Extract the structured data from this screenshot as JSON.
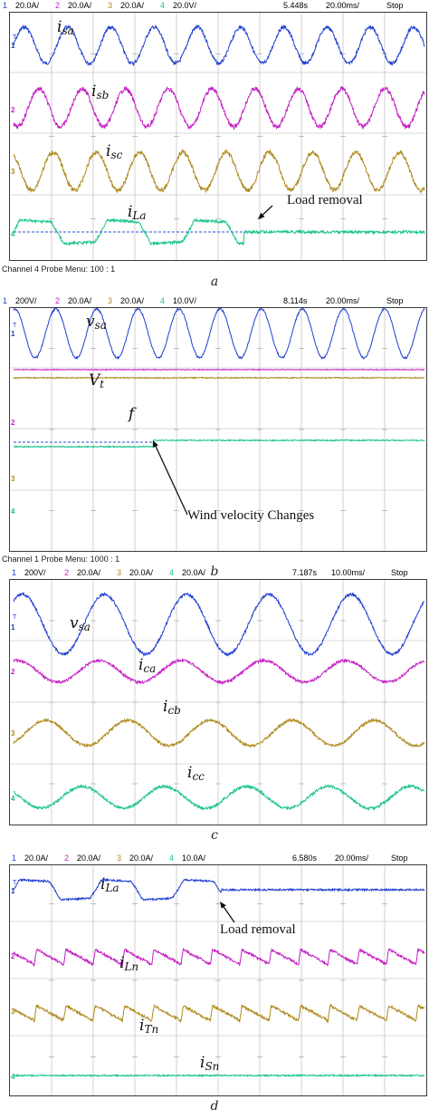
{
  "chart_data": [
    {
      "type": "line",
      "panel_label": "a",
      "header": {
        "channels": [
          {
            "index": "1",
            "scale": "20.0A/",
            "color": "#1f3fd0"
          },
          {
            "index": "2",
            "scale": "20.0A/",
            "color": "#c51fc5"
          },
          {
            "index": "3",
            "scale": "20.0A/",
            "color": "#b08a1e"
          },
          {
            "index": "4",
            "scale": "20.0V/",
            "color": "#18c48a"
          }
        ],
        "time": "5.448s",
        "timebase": "20.00ms/",
        "status": "Stop"
      },
      "probe_menu": "Channel 4 Probe Menu: 100 : 1",
      "x_divisions": 10,
      "series": [
        {
          "name_base": "i",
          "name_sub": "sa",
          "channel": "1",
          "waveform": "sine",
          "cycles": 9.5,
          "color": "#1f3fd0"
        },
        {
          "name_base": "i",
          "name_sub": "sb",
          "channel": "2",
          "waveform": "sine",
          "cycles": 9.5,
          "color": "#c51fc5"
        },
        {
          "name_base": "i",
          "name_sub": "sc",
          "channel": "3",
          "waveform": "sine",
          "cycles": 9.5,
          "color": "#b08a1e"
        },
        {
          "name_base": "i",
          "name_sub": "La",
          "channel": "4",
          "waveform": "quasi-square",
          "cycles": 4.7,
          "removed_at_fraction": 0.56,
          "color": "#18c48a"
        }
      ],
      "annotations": [
        {
          "text": "Load removal",
          "at_fraction": 0.56
        }
      ]
    },
    {
      "type": "line",
      "panel_label": "b",
      "header": {
        "channels": [
          {
            "index": "1",
            "scale": "200V/",
            "color": "#1f3fd0"
          },
          {
            "index": "2",
            "scale": "20.0A/",
            "color": "#c51fc5"
          },
          {
            "index": "3",
            "scale": "20.0A/",
            "color": "#b08a1e"
          },
          {
            "index": "4",
            "scale": "10.0V/",
            "color": "#18c48a"
          }
        ],
        "time": "8.114s",
        "timebase": "20.00ms/",
        "status": "Stop"
      },
      "probe_menu": "Channel 1 Probe Menu: 1000 : 1",
      "x_divisions": 10,
      "series": [
        {
          "name_base": "v",
          "name_sub": "sa",
          "channel": "1",
          "waveform": "sine",
          "cycles": 10,
          "color": "#1f3fd0"
        },
        {
          "name_base": "V",
          "name_sub": "t",
          "channel": "2",
          "waveform": "dc",
          "color": "#c51fc5"
        },
        {
          "name_base": "f",
          "name_sub": "",
          "channel": "3",
          "waveform": "dc",
          "color": "#b08a1e"
        },
        {
          "name_base": "",
          "name_sub": "",
          "channel": "4",
          "waveform": "step",
          "step_at_fraction": 0.34,
          "color": "#18c48a"
        }
      ],
      "annotations": [
        {
          "text": "Wind velocity Changes",
          "at_fraction": 0.34
        }
      ]
    },
    {
      "type": "line",
      "panel_label": "c",
      "header": {
        "channels": [
          {
            "index": "1",
            "scale": "200V/",
            "color": "#1f3fd0"
          },
          {
            "index": "2",
            "scale": "20.0A/",
            "color": "#c51fc5"
          },
          {
            "index": "3",
            "scale": "20.0A/",
            "color": "#b08a1e"
          },
          {
            "index": "4",
            "scale": "20.0A/",
            "color": "#18c48a"
          }
        ],
        "time": "7.187s",
        "timebase": "10.00ms/",
        "status": "Stop"
      },
      "probe_menu": "",
      "x_divisions": 10,
      "series": [
        {
          "name_base": "v",
          "name_sub": "sa",
          "channel": "1",
          "waveform": "sine",
          "cycles": 5,
          "color": "#1f3fd0"
        },
        {
          "name_base": "i",
          "name_sub": "ca",
          "channel": "2",
          "waveform": "sine",
          "cycles": 5,
          "color": "#c51fc5"
        },
        {
          "name_base": "i",
          "name_sub": "cb",
          "channel": "3",
          "waveform": "sine",
          "cycles": 5,
          "color": "#b08a1e"
        },
        {
          "name_base": "i",
          "name_sub": "cc",
          "channel": "4",
          "waveform": "sine",
          "cycles": 5,
          "color": "#18c48a"
        }
      ],
      "annotations": []
    },
    {
      "type": "line",
      "panel_label": "d",
      "header": {
        "channels": [
          {
            "index": "1",
            "scale": "20.0A/",
            "color": "#1f3fd0"
          },
          {
            "index": "2",
            "scale": "20.0A/",
            "color": "#c51fc5"
          },
          {
            "index": "3",
            "scale": "20.0A/",
            "color": "#b08a1e"
          },
          {
            "index": "4",
            "scale": "10.0A/",
            "color": "#18c48a"
          }
        ],
        "time": "6.580s",
        "timebase": "20.00ms/",
        "status": "Stop"
      },
      "probe_menu": "",
      "x_divisions": 10,
      "series": [
        {
          "name_base": "i",
          "name_sub": "La",
          "channel": "1",
          "waveform": "quasi-square",
          "cycles": 5,
          "removed_at_fraction": 0.505,
          "color": "#1f3fd0"
        },
        {
          "name_base": "i",
          "name_sub": "Ln",
          "channel": "2",
          "waveform": "sawtooth",
          "cycles": 14,
          "color": "#c51fc5"
        },
        {
          "name_base": "i",
          "name_sub": "Tn",
          "channel": "3",
          "waveform": "sawtooth",
          "cycles": 14,
          "color": "#b08a1e"
        },
        {
          "name_base": "i",
          "name_sub": "Sn",
          "channel": "4",
          "waveform": "dc",
          "color": "#18c48a"
        }
      ],
      "annotations": [
        {
          "text": "Load removal",
          "at_fraction": 0.505
        }
      ]
    }
  ]
}
